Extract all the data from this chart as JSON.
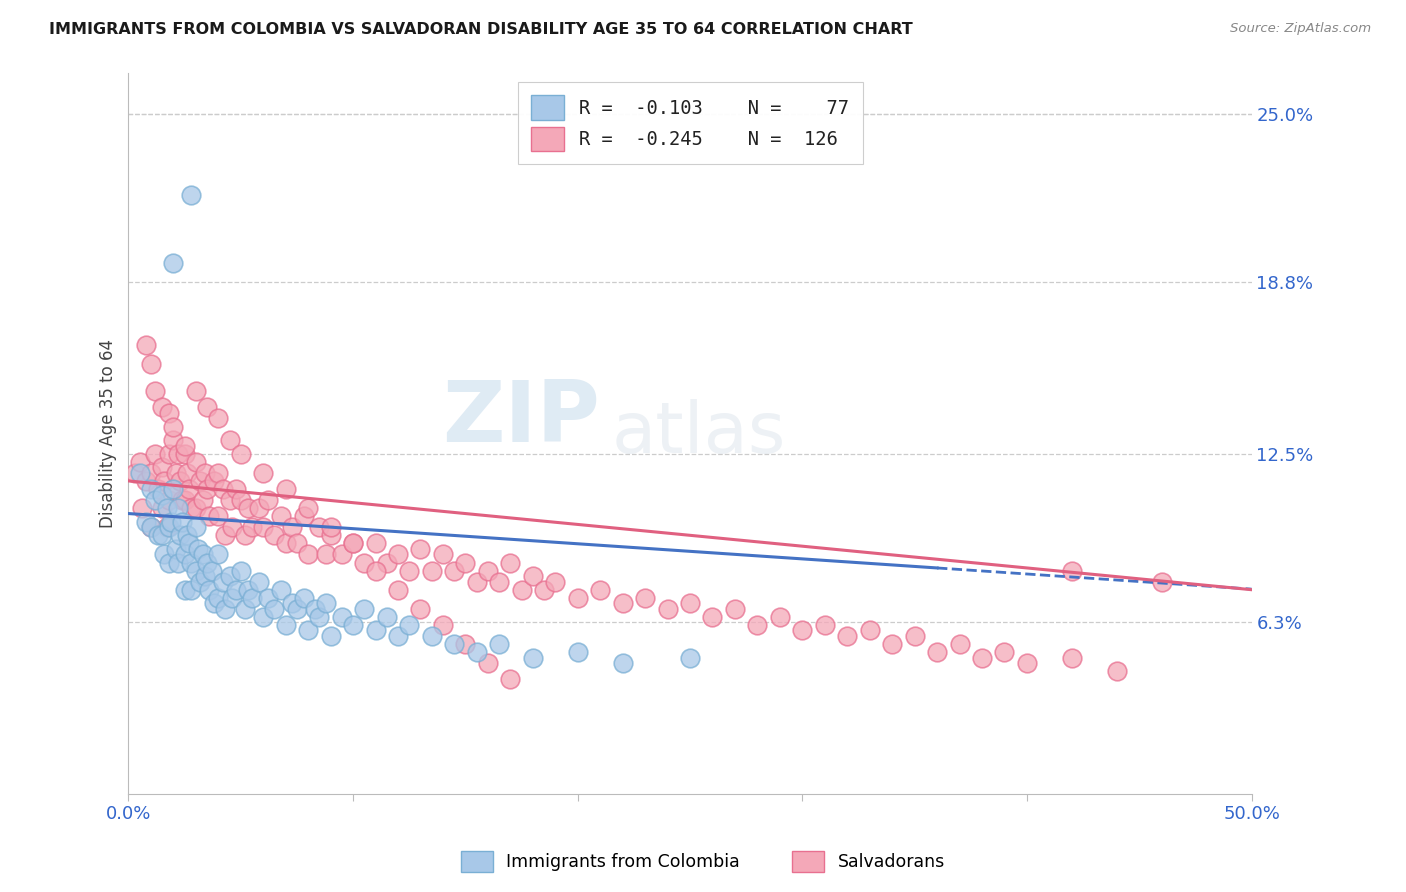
{
  "title": "IMMIGRANTS FROM COLOMBIA VS SALVADORAN DISABILITY AGE 35 TO 64 CORRELATION CHART",
  "source": "Source: ZipAtlas.com",
  "ylabel": "Disability Age 35 to 64",
  "xlim": [
    0.0,
    0.5
  ],
  "ylim": [
    0.0,
    0.265
  ],
  "ytick_labels_right": [
    "6.3%",
    "12.5%",
    "18.8%",
    "25.0%"
  ],
  "ytick_vals_right": [
    0.063,
    0.125,
    0.188,
    0.25
  ],
  "colombia_R": -0.103,
  "colombia_N": 77,
  "salvador_R": -0.245,
  "salvador_N": 126,
  "colombia_color": "#a8c8e8",
  "salvador_color": "#f4a8b8",
  "colombia_edge_color": "#7aafd4",
  "salvador_edge_color": "#e87090",
  "colombia_line_color": "#4472c4",
  "salvador_line_color": "#e06080",
  "watermark": "ZIPatlas",
  "colombia_x": [
    0.005,
    0.008,
    0.01,
    0.01,
    0.012,
    0.013,
    0.015,
    0.015,
    0.016,
    0.017,
    0.018,
    0.018,
    0.019,
    0.02,
    0.021,
    0.022,
    0.022,
    0.023,
    0.024,
    0.025,
    0.025,
    0.026,
    0.027,
    0.028,
    0.028,
    0.03,
    0.03,
    0.031,
    0.032,
    0.033,
    0.034,
    0.035,
    0.036,
    0.037,
    0.038,
    0.04,
    0.04,
    0.042,
    0.043,
    0.045,
    0.046,
    0.048,
    0.05,
    0.052,
    0.053,
    0.055,
    0.058,
    0.06,
    0.062,
    0.065,
    0.068,
    0.07,
    0.073,
    0.075,
    0.078,
    0.08,
    0.083,
    0.085,
    0.088,
    0.09,
    0.095,
    0.1,
    0.105,
    0.11,
    0.115,
    0.12,
    0.125,
    0.135,
    0.145,
    0.155,
    0.165,
    0.18,
    0.2,
    0.22,
    0.25,
    0.028,
    0.02
  ],
  "colombia_y": [
    0.118,
    0.1,
    0.112,
    0.098,
    0.108,
    0.095,
    0.11,
    0.095,
    0.088,
    0.105,
    0.098,
    0.085,
    0.1,
    0.112,
    0.09,
    0.105,
    0.085,
    0.095,
    0.1,
    0.088,
    0.075,
    0.095,
    0.092,
    0.085,
    0.075,
    0.098,
    0.082,
    0.09,
    0.078,
    0.088,
    0.08,
    0.085,
    0.075,
    0.082,
    0.07,
    0.088,
    0.072,
    0.078,
    0.068,
    0.08,
    0.072,
    0.075,
    0.082,
    0.068,
    0.075,
    0.072,
    0.078,
    0.065,
    0.072,
    0.068,
    0.075,
    0.062,
    0.07,
    0.068,
    0.072,
    0.06,
    0.068,
    0.065,
    0.07,
    0.058,
    0.065,
    0.062,
    0.068,
    0.06,
    0.065,
    0.058,
    0.062,
    0.058,
    0.055,
    0.052,
    0.055,
    0.05,
    0.052,
    0.048,
    0.05,
    0.22,
    0.195
  ],
  "salvador_x": [
    0.003,
    0.005,
    0.006,
    0.008,
    0.01,
    0.01,
    0.012,
    0.013,
    0.015,
    0.015,
    0.016,
    0.017,
    0.018,
    0.018,
    0.02,
    0.02,
    0.021,
    0.022,
    0.023,
    0.024,
    0.025,
    0.025,
    0.026,
    0.027,
    0.028,
    0.03,
    0.03,
    0.032,
    0.033,
    0.034,
    0.035,
    0.036,
    0.038,
    0.04,
    0.04,
    0.042,
    0.043,
    0.045,
    0.046,
    0.048,
    0.05,
    0.052,
    0.053,
    0.055,
    0.058,
    0.06,
    0.062,
    0.065,
    0.068,
    0.07,
    0.073,
    0.075,
    0.078,
    0.08,
    0.085,
    0.088,
    0.09,
    0.095,
    0.1,
    0.105,
    0.11,
    0.115,
    0.12,
    0.125,
    0.13,
    0.135,
    0.14,
    0.145,
    0.15,
    0.155,
    0.16,
    0.165,
    0.17,
    0.175,
    0.18,
    0.185,
    0.19,
    0.2,
    0.21,
    0.22,
    0.23,
    0.24,
    0.25,
    0.26,
    0.27,
    0.28,
    0.29,
    0.3,
    0.31,
    0.32,
    0.33,
    0.34,
    0.35,
    0.36,
    0.37,
    0.38,
    0.39,
    0.4,
    0.42,
    0.44,
    0.008,
    0.01,
    0.012,
    0.015,
    0.018,
    0.02,
    0.025,
    0.03,
    0.035,
    0.04,
    0.045,
    0.05,
    0.06,
    0.07,
    0.08,
    0.09,
    0.1,
    0.11,
    0.12,
    0.13,
    0.14,
    0.15,
    0.16,
    0.17,
    0.42,
    0.46
  ],
  "salvador_y": [
    0.118,
    0.122,
    0.105,
    0.115,
    0.118,
    0.098,
    0.125,
    0.112,
    0.12,
    0.105,
    0.115,
    0.098,
    0.125,
    0.108,
    0.13,
    0.112,
    0.118,
    0.125,
    0.115,
    0.108,
    0.125,
    0.108,
    0.118,
    0.112,
    0.105,
    0.122,
    0.105,
    0.115,
    0.108,
    0.118,
    0.112,
    0.102,
    0.115,
    0.118,
    0.102,
    0.112,
    0.095,
    0.108,
    0.098,
    0.112,
    0.108,
    0.095,
    0.105,
    0.098,
    0.105,
    0.098,
    0.108,
    0.095,
    0.102,
    0.092,
    0.098,
    0.092,
    0.102,
    0.088,
    0.098,
    0.088,
    0.095,
    0.088,
    0.092,
    0.085,
    0.092,
    0.085,
    0.088,
    0.082,
    0.09,
    0.082,
    0.088,
    0.082,
    0.085,
    0.078,
    0.082,
    0.078,
    0.085,
    0.075,
    0.08,
    0.075,
    0.078,
    0.072,
    0.075,
    0.07,
    0.072,
    0.068,
    0.07,
    0.065,
    0.068,
    0.062,
    0.065,
    0.06,
    0.062,
    0.058,
    0.06,
    0.055,
    0.058,
    0.052,
    0.055,
    0.05,
    0.052,
    0.048,
    0.05,
    0.045,
    0.165,
    0.158,
    0.148,
    0.142,
    0.14,
    0.135,
    0.128,
    0.148,
    0.142,
    0.138,
    0.13,
    0.125,
    0.118,
    0.112,
    0.105,
    0.098,
    0.092,
    0.082,
    0.075,
    0.068,
    0.062,
    0.055,
    0.048,
    0.042,
    0.082,
    0.078
  ]
}
